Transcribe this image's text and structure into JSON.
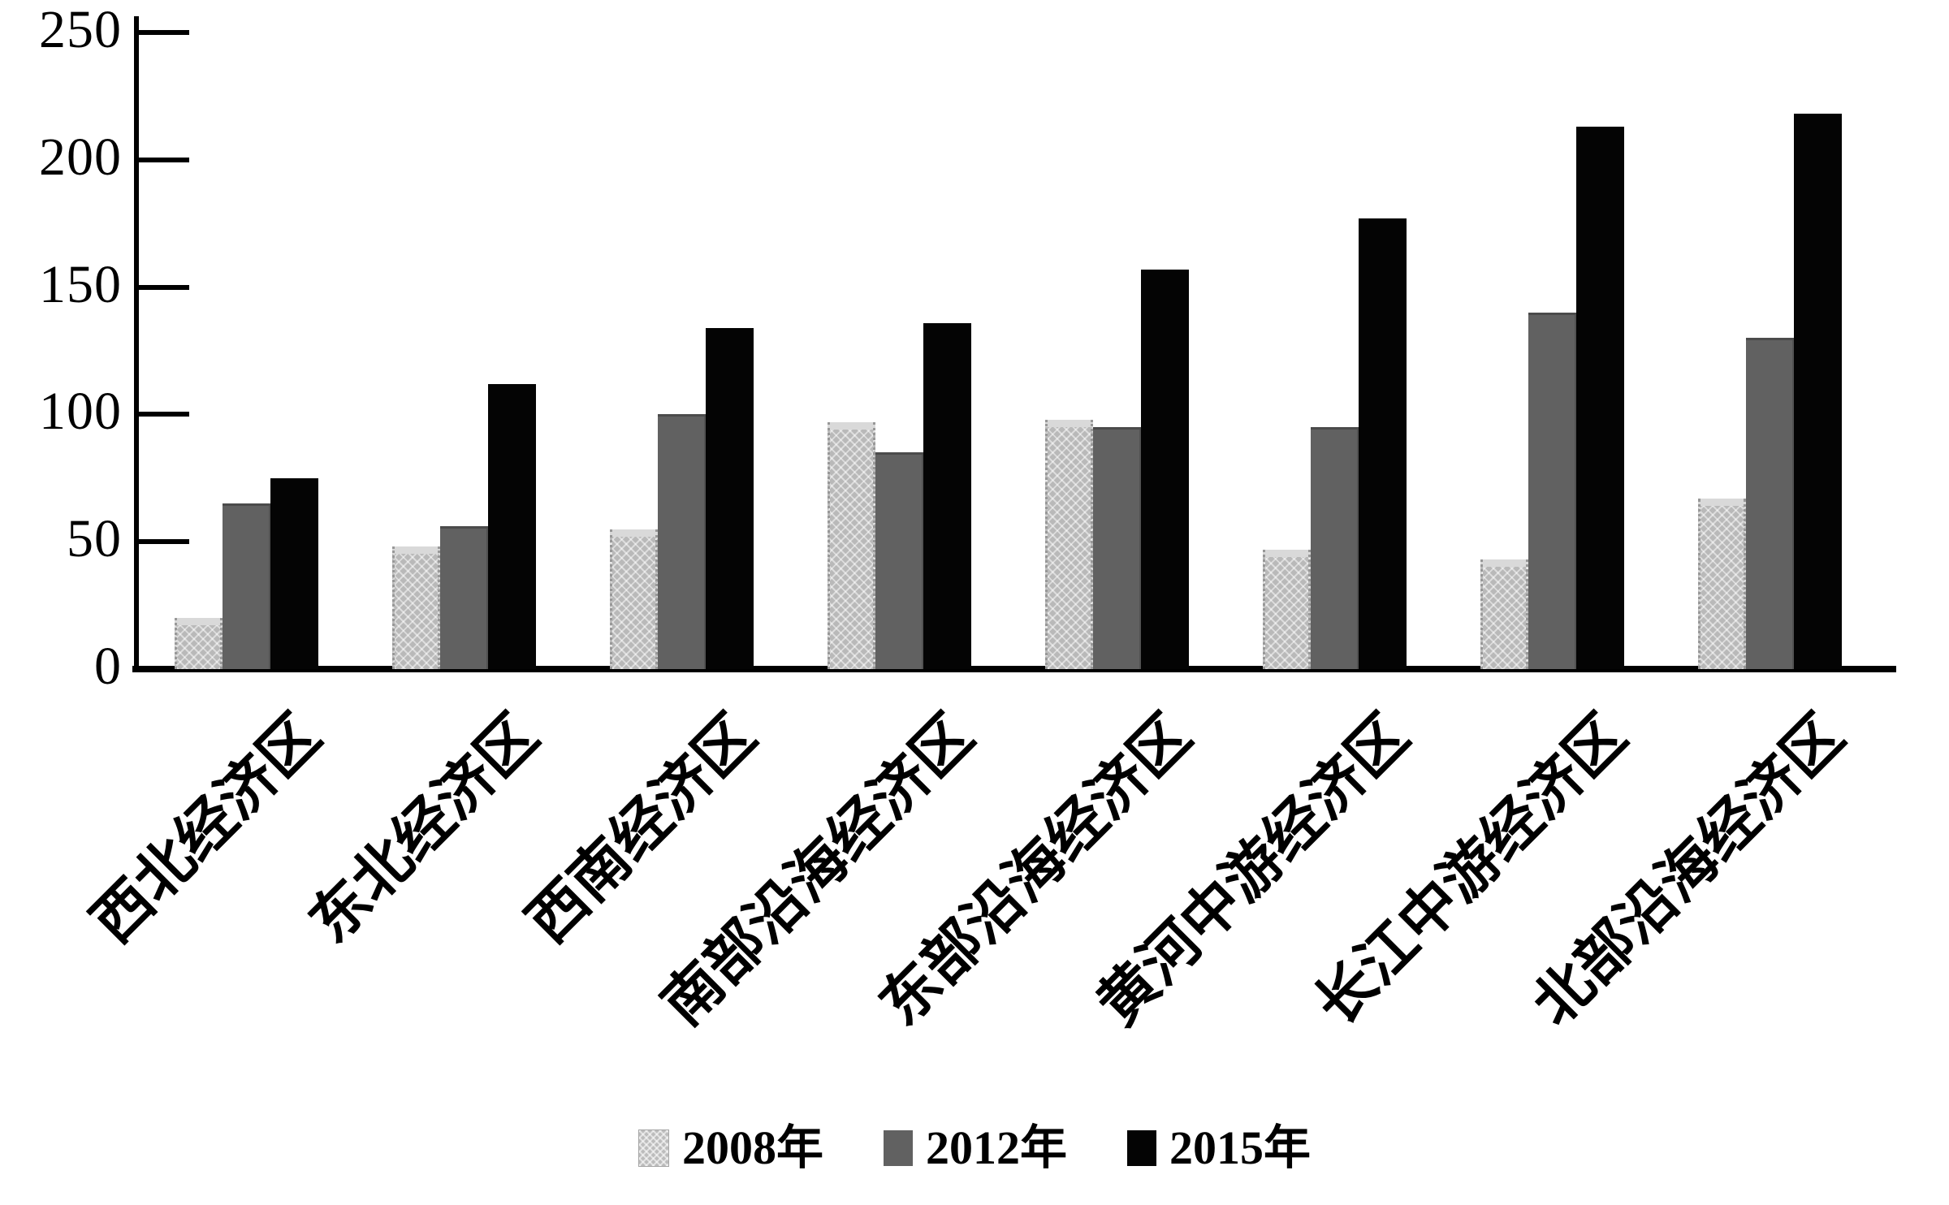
{
  "chart_data": {
    "type": "bar",
    "title": "",
    "xlabel": "",
    "ylabel": "",
    "categories": [
      "西北经济区",
      "东北经济区",
      "西南经济区",
      "南部沿海经济区",
      "东部沿海经济区",
      "黄河中游经济区",
      "长江中游经济区",
      "北部沿海经济区"
    ],
    "series": [
      {
        "name": "2008年",
        "color": "#b9b9b9",
        "pattern": "crosshatch",
        "values": [
          20,
          48,
          55,
          97,
          98,
          47,
          43,
          67
        ]
      },
      {
        "name": "2012年",
        "color": "#616161",
        "pattern": "solid",
        "values": [
          65,
          56,
          100,
          85,
          95,
          95,
          140,
          130
        ]
      },
      {
        "name": "2015年",
        "color": "#040404",
        "pattern": "solid",
        "values": [
          75,
          112,
          134,
          136,
          157,
          177,
          213,
          218
        ]
      }
    ],
    "y_axis": {
      "min": 0,
      "max": 250,
      "tick_interval": 50,
      "tick_labels": [
        "0",
        "50",
        "100",
        "150",
        "200",
        "250"
      ]
    },
    "grid": false,
    "legend_position": "bottom",
    "legend_entries": [
      "2008年",
      "2012年",
      "2015年"
    ]
  }
}
